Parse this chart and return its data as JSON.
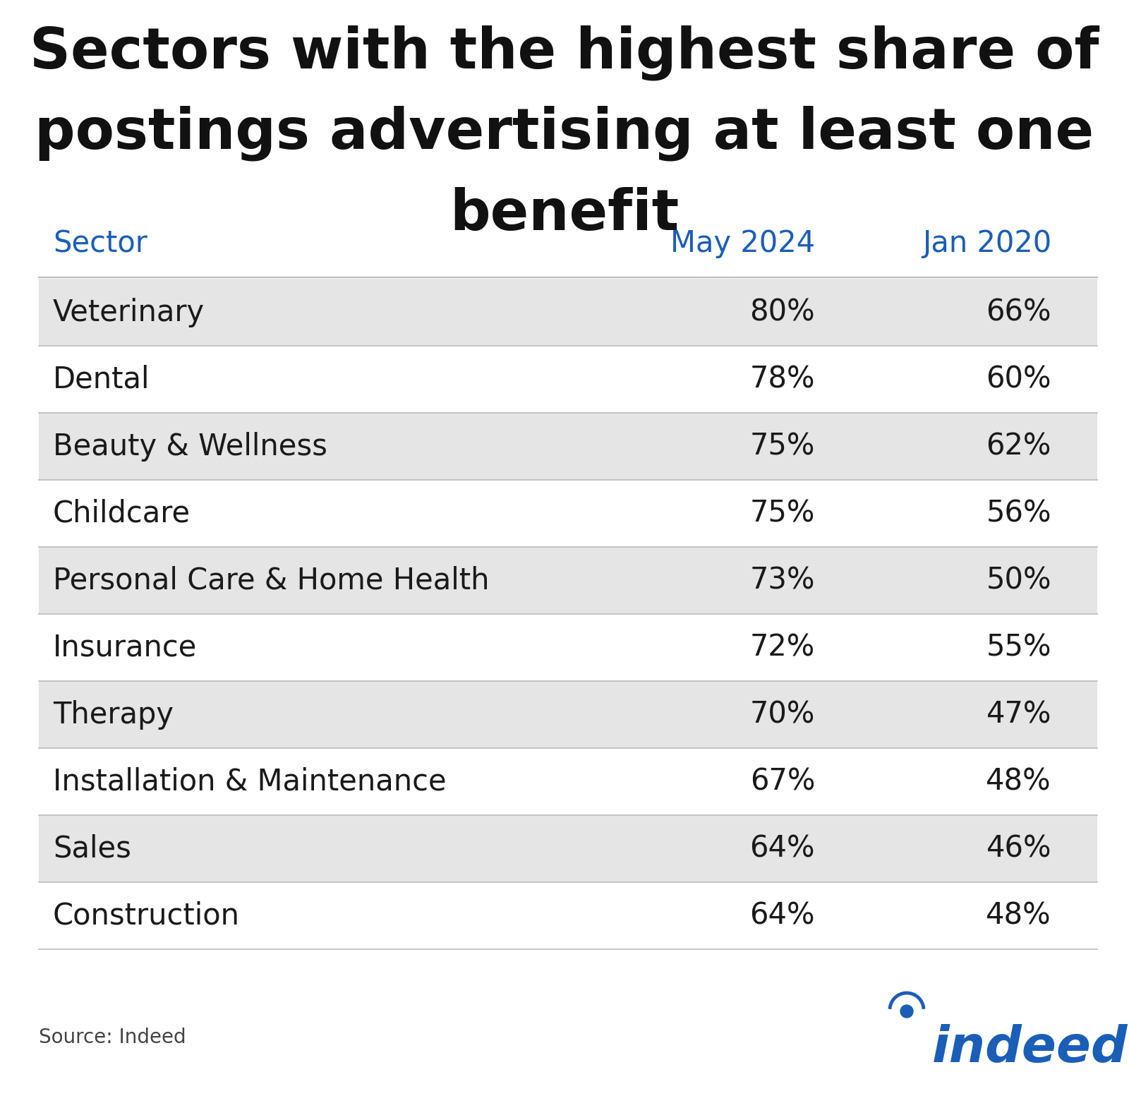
{
  "title_line1": "Sectors with the highest share of",
  "title_line2": "postings advertising at least one",
  "title_line3": "benefit",
  "col_header_sector": "Sector",
  "col_header_may": "May 2024",
  "col_header_jan": "Jan 2020",
  "rows": [
    {
      "sector": "Veterinary",
      "may": "80%",
      "jan": "66%",
      "shaded": true
    },
    {
      "sector": "Dental",
      "may": "78%",
      "jan": "60%",
      "shaded": false
    },
    {
      "sector": "Beauty & Wellness",
      "may": "75%",
      "jan": "62%",
      "shaded": true
    },
    {
      "sector": "Childcare",
      "may": "75%",
      "jan": "56%",
      "shaded": false
    },
    {
      "sector": "Personal Care & Home Health",
      "may": "73%",
      "jan": "50%",
      "shaded": true
    },
    {
      "sector": "Insurance",
      "may": "72%",
      "jan": "55%",
      "shaded": false
    },
    {
      "sector": "Therapy",
      "may": "70%",
      "jan": "47%",
      "shaded": true
    },
    {
      "sector": "Installation & Maintenance",
      "may": "67%",
      "jan": "48%",
      "shaded": false
    },
    {
      "sector": "Sales",
      "may": "64%",
      "jan": "46%",
      "shaded": true
    },
    {
      "sector": "Construction",
      "may": "64%",
      "jan": "48%",
      "shaded": false
    }
  ],
  "title_color": "#111111",
  "header_color": "#1a5eb8",
  "row_text_color": "#1a1a1a",
  "shaded_bg": "#e5e5e5",
  "white_bg": "#ffffff",
  "source_text": "Source: Indeed",
  "source_color": "#444444",
  "title_fontsize": 58,
  "header_fontsize": 30,
  "row_fontsize": 30,
  "source_fontsize": 20,
  "indeed_color": "#1a5eb8"
}
